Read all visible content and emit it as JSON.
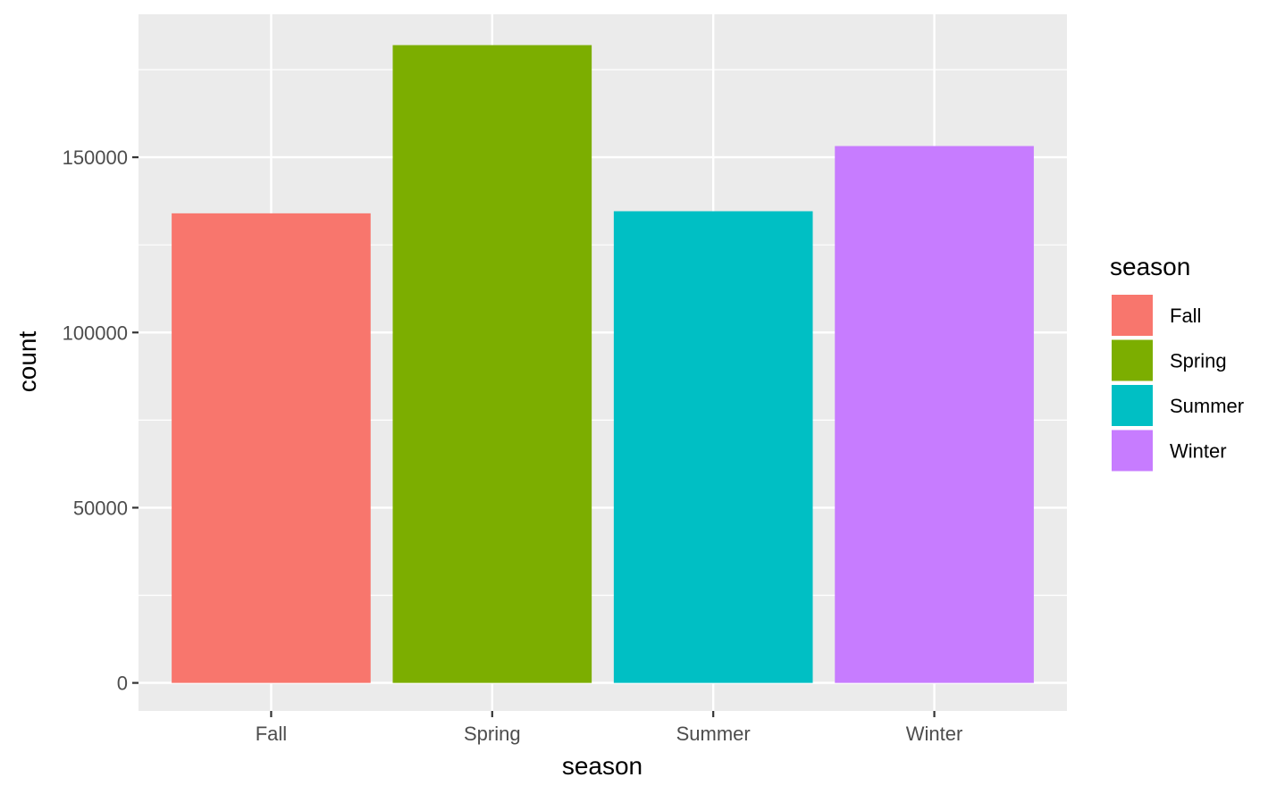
{
  "chart_data": {
    "type": "bar",
    "title": "",
    "xlabel": "season",
    "ylabel": "count",
    "categories": [
      "Fall",
      "Spring",
      "Summer",
      "Winter"
    ],
    "values": [
      134000,
      182000,
      134600,
      153200
    ],
    "colors": [
      "#F8766D",
      "#7CAE00",
      "#00BFC4",
      "#C77CFF"
    ],
    "ylim": [
      -8000,
      190800
    ],
    "yticks": [
      0,
      50000,
      100000,
      150000
    ],
    "ytick_labels": [
      "0",
      "50000",
      "100000",
      "150000"
    ],
    "grid": true,
    "legend": {
      "title": "season",
      "position": "right",
      "items": [
        "Fall",
        "Spring",
        "Summer",
        "Winter"
      ]
    },
    "panel_background": "#EBEBEB",
    "grid_color": "#FFFFFF"
  }
}
